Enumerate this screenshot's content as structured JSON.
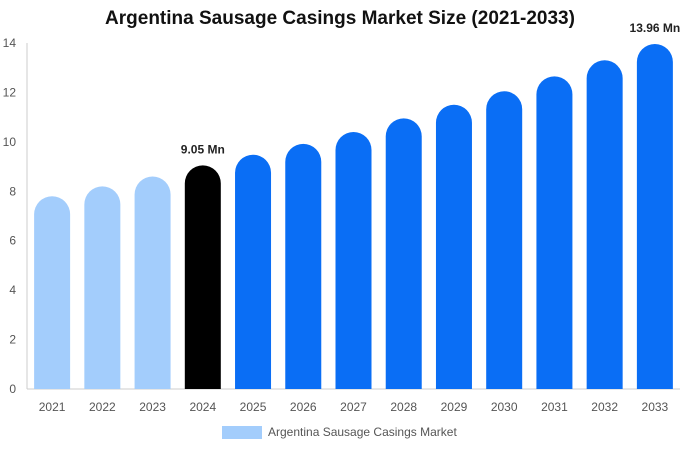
{
  "chart_data": {
    "type": "bar",
    "title": "Argentina Sausage Casings Market Size (2021-2033)",
    "categories": [
      "2021",
      "2022",
      "2023",
      "2024",
      "2025",
      "2026",
      "2027",
      "2028",
      "2029",
      "2030",
      "2031",
      "2032",
      "2033"
    ],
    "series": [
      {
        "name": "Argentina Sausage Casings Market",
        "values": [
          7.8,
          8.2,
          8.6,
          9.05,
          9.48,
          9.92,
          10.4,
          10.95,
          11.5,
          12.05,
          12.65,
          13.3,
          13.96
        ]
      }
    ],
    "data_labels": [
      {
        "category": "2024",
        "text": "9.05 Mn"
      },
      {
        "category": "2033",
        "text": "13.96 Mn"
      }
    ],
    "ylim": [
      0,
      14
    ],
    "yticks": [
      0,
      2,
      4,
      6,
      8,
      10,
      12,
      14
    ],
    "xlabel": "",
    "ylabel": "",
    "grid": false,
    "legend_position": "bottom",
    "colors": {
      "historical": "#a3cdfc",
      "base_year": "#000000",
      "forecast": "#0a6ef5",
      "axis": "#cccccc",
      "tick_text": "#555555"
    },
    "bar_color_groups": [
      "historical",
      "historical",
      "historical",
      "base_year",
      "forecast",
      "forecast",
      "forecast",
      "forecast",
      "forecast",
      "forecast",
      "forecast",
      "forecast",
      "forecast"
    ]
  }
}
